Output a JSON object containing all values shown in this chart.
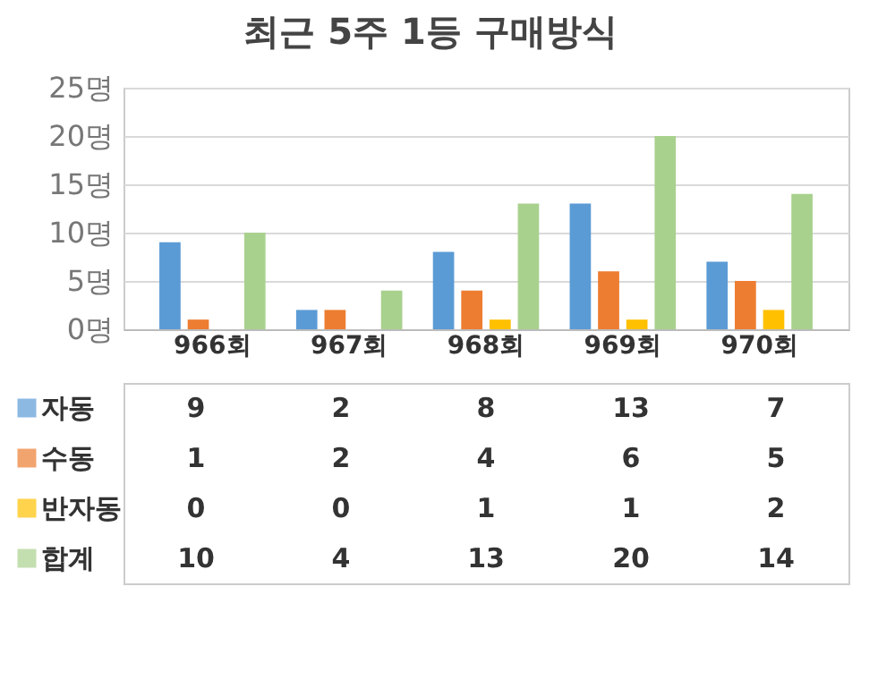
{
  "chart_data": {
    "type": "bar",
    "title": "최근 5주 1등 구매방식",
    "categories": [
      "966회",
      "967회",
      "968회",
      "969회",
      "970회"
    ],
    "series": [
      {
        "name": "자동",
        "color": "#5b9bd5",
        "values": [
          9,
          2,
          8,
          13,
          7
        ]
      },
      {
        "name": "수동",
        "color": "#ed7d31",
        "values": [
          1,
          2,
          4,
          6,
          5
        ]
      },
      {
        "name": "반자동",
        "color": "#ffc000",
        "values": [
          0,
          0,
          1,
          1,
          2
        ]
      },
      {
        "name": "합계",
        "color": "#a9d18e",
        "values": [
          10,
          4,
          13,
          20,
          14
        ]
      }
    ],
    "ylim": [
      0,
      25
    ],
    "yticks": [
      {
        "value": 0,
        "label": "0명"
      },
      {
        "value": 5,
        "label": "5명"
      },
      {
        "value": 10,
        "label": "10명"
      },
      {
        "value": 15,
        "label": "15명"
      },
      {
        "value": 20,
        "label": "20명"
      },
      {
        "value": 25,
        "label": "25명"
      }
    ],
    "grid": "y",
    "legend": "bottom",
    "data_labels": true
  }
}
